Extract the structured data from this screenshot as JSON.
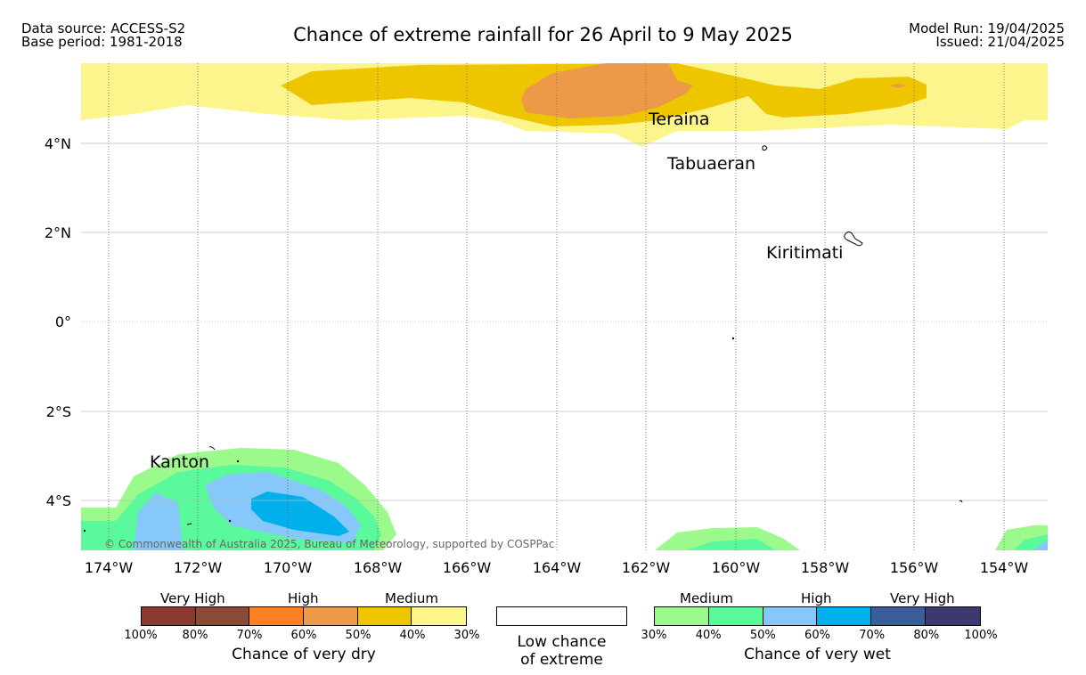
{
  "header": {
    "data_source": "Data source: ACCESS-S2",
    "base_period": "Base period: 1981-2018",
    "title": "Chance of extreme rainfall for 26 April to 9 May 2025",
    "model_run": "Model Run: 19/04/2025",
    "issued": "Issued: 21/04/2025"
  },
  "map": {
    "lon_ticks": [
      "174°W",
      "172°W",
      "170°W",
      "168°W",
      "166°W",
      "164°W",
      "162°W",
      "160°W",
      "158°W",
      "156°W",
      "154°W"
    ],
    "lat_ticks": [
      "4°N",
      "2°N",
      "0°",
      "2°S",
      "4°S"
    ],
    "places": [
      "Teraina",
      "Tabuaeran",
      "Kiritimati",
      "Kanton"
    ],
    "copyright": "© Commonwealth of Australia 2025, Bureau of Meteorology, supported by COSPPac"
  },
  "legend": {
    "dry": {
      "labels": [
        "Very High",
        "High",
        "Medium"
      ],
      "ticks": [
        "100%",
        "80%",
        "70%",
        "60%",
        "50%",
        "40%",
        "30%"
      ],
      "caption": "Chance of very dry",
      "colors": [
        "#8b3a32",
        "#8a4a38",
        "#fc8021",
        "#ec9a48",
        "#edc600",
        "#fcf58c"
      ]
    },
    "neutral": {
      "caption_line1": "Low chance",
      "caption_line2": "of extreme",
      "color": "#ffffff"
    },
    "wet": {
      "labels": [
        "Medium",
        "High",
        "Very High"
      ],
      "ticks": [
        "30%",
        "40%",
        "50%",
        "60%",
        "70%",
        "80%",
        "100%"
      ],
      "caption": "Chance of very wet",
      "colors": [
        "#9cfa8c",
        "#5afa9c",
        "#86c8fa",
        "#00b0ec",
        "#3a5e98",
        "#3c3870"
      ]
    }
  }
}
